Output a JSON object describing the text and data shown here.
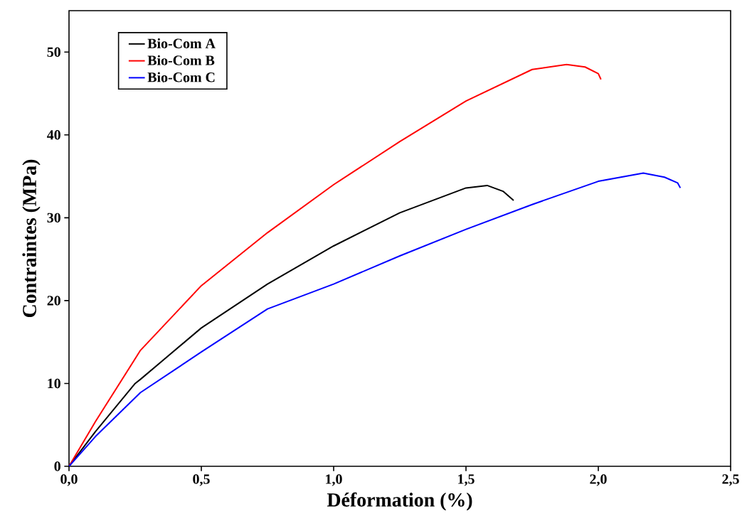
{
  "chart_data": {
    "type": "line",
    "xlabel": "Déformation (%)",
    "ylabel": "Contraintes (MPa)",
    "xlim": [
      0,
      2.5
    ],
    "ylim": [
      0,
      55
    ],
    "xticks": [
      {
        "value": 0,
        "label": "0,0"
      },
      {
        "value": 0.5,
        "label": "0,5"
      },
      {
        "value": 1,
        "label": "1,0"
      },
      {
        "value": 1.5,
        "label": "1,5"
      },
      {
        "value": 2,
        "label": "2,0"
      },
      {
        "value": 2.5,
        "label": "2,5"
      }
    ],
    "yticks": [
      0,
      10,
      20,
      30,
      40,
      50
    ],
    "grid": false,
    "legend": "top left",
    "marker": "none",
    "line_style": "solid",
    "series": [
      {
        "name": "Bio-Com A",
        "color": "#000000",
        "x": [
          0,
          0.1,
          0.25,
          0.27,
          0.5,
          0.75,
          1.0,
          1.25,
          1.5,
          1.58,
          1.64,
          1.68
        ],
        "values": [
          0,
          4.2,
          10.0,
          10.5,
          16.7,
          22.0,
          26.6,
          30.6,
          33.6,
          33.9,
          33.2,
          32.1
        ]
      },
      {
        "name": "Bio-Com B",
        "color": "#ff0000",
        "x": [
          0,
          0.1,
          0.27,
          0.5,
          0.75,
          1.0,
          1.25,
          1.5,
          1.75,
          1.88,
          1.95,
          2.0,
          2.01
        ],
        "values": [
          0,
          5.4,
          14.0,
          21.8,
          28.2,
          34.0,
          39.2,
          44.1,
          47.9,
          48.5,
          48.2,
          47.4,
          46.7
        ]
      },
      {
        "name": "Bio-Com C",
        "color": "#0000ff",
        "x": [
          0,
          0.1,
          0.27,
          0.5,
          0.75,
          1.0,
          1.25,
          1.5,
          1.75,
          2.0,
          2.17,
          2.25,
          2.3,
          2.31
        ],
        "values": [
          0,
          3.6,
          8.9,
          13.8,
          19.0,
          22.0,
          25.4,
          28.6,
          31.6,
          34.4,
          35.4,
          34.9,
          34.2,
          33.6
        ]
      }
    ]
  }
}
